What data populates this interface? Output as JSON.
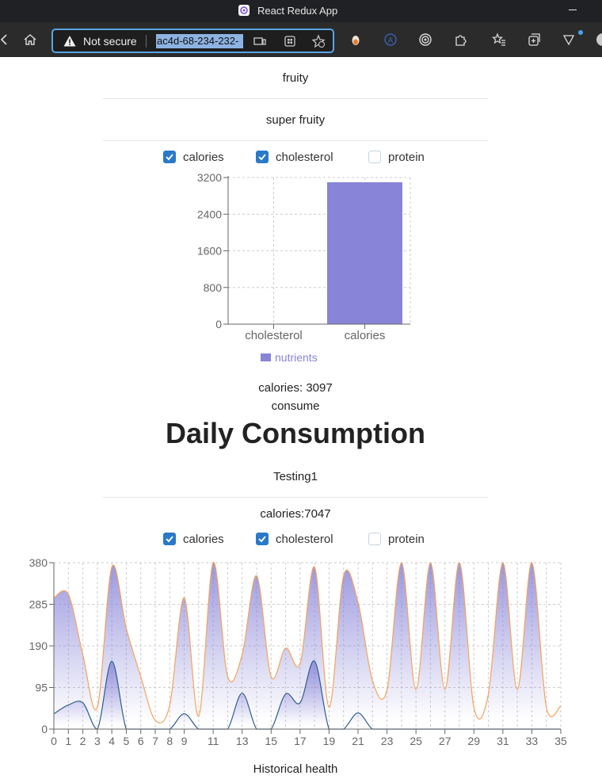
{
  "browser": {
    "title": "React Redux App",
    "security_label": "Not secure",
    "url": "ac4d-68-234-232-"
  },
  "top_card": {
    "rows": [
      "fruity",
      "super fruity"
    ],
    "checkboxes": [
      {
        "label": "calories",
        "checked": true
      },
      {
        "label": "cholesterol",
        "checked": true
      },
      {
        "label": "protein",
        "checked": false
      }
    ],
    "summary": "calories: 3097",
    "sub_label": "consume"
  },
  "heading": "Daily Consumption",
  "bottom_card": {
    "name": "Testing1",
    "calories_label": "calories:7047",
    "checkboxes": [
      {
        "label": "calories",
        "checked": true
      },
      {
        "label": "cholesterol",
        "checked": true
      },
      {
        "label": "protein",
        "checked": false
      }
    ],
    "footer": "Historical health"
  },
  "chart_data": [
    {
      "type": "bar",
      "categories": [
        "cholesterol",
        "calories"
      ],
      "series": [
        {
          "name": "nutrients",
          "values": [
            0,
            3097
          ],
          "color": "#8884d8"
        }
      ],
      "ylim": [
        0,
        3200
      ],
      "yticks": [
        0,
        800,
        1600,
        2400,
        3200
      ],
      "grid": true,
      "legend": "bottom"
    },
    {
      "type": "area",
      "x": [
        0,
        1,
        2,
        3,
        4,
        5,
        6,
        7,
        8,
        9,
        10,
        11,
        12,
        13,
        14,
        15,
        16,
        17,
        18,
        19,
        20,
        21,
        22,
        23,
        24,
        25,
        26,
        27,
        28,
        29,
        30,
        31,
        32,
        33,
        34,
        35
      ],
      "xticks": [
        0,
        1,
        2,
        3,
        4,
        5,
        6,
        7,
        8,
        9,
        11,
        13,
        15,
        17,
        19,
        21,
        23,
        25,
        27,
        29,
        31,
        33,
        35
      ],
      "ylim": [
        0,
        380
      ],
      "yticks": [
        0,
        95,
        190,
        285,
        380
      ],
      "grid": true,
      "series": [
        {
          "name": "calories",
          "color": "#f5a35a",
          "fill": "#8884d8",
          "values": [
            300,
            308,
            170,
            50,
            370,
            230,
            120,
            20,
            55,
            300,
            30,
            380,
            120,
            170,
            350,
            120,
            185,
            150,
            370,
            50,
            350,
            290,
            110,
            90,
            380,
            90,
            380,
            90,
            380,
            50,
            80,
            380,
            90,
            380,
            50,
            53
          ]
        },
        {
          "name": "cholesterol",
          "color": "#2c5e8c",
          "fill": "#8884d8",
          "values": [
            35,
            55,
            60,
            0,
            155,
            0,
            0,
            0,
            0,
            35,
            0,
            0,
            0,
            82,
            0,
            0,
            80,
            60,
            155,
            0,
            0,
            37,
            0,
            0,
            0,
            0,
            0,
            0,
            0,
            0,
            0,
            0,
            0,
            0,
            0,
            0
          ]
        }
      ]
    }
  ]
}
